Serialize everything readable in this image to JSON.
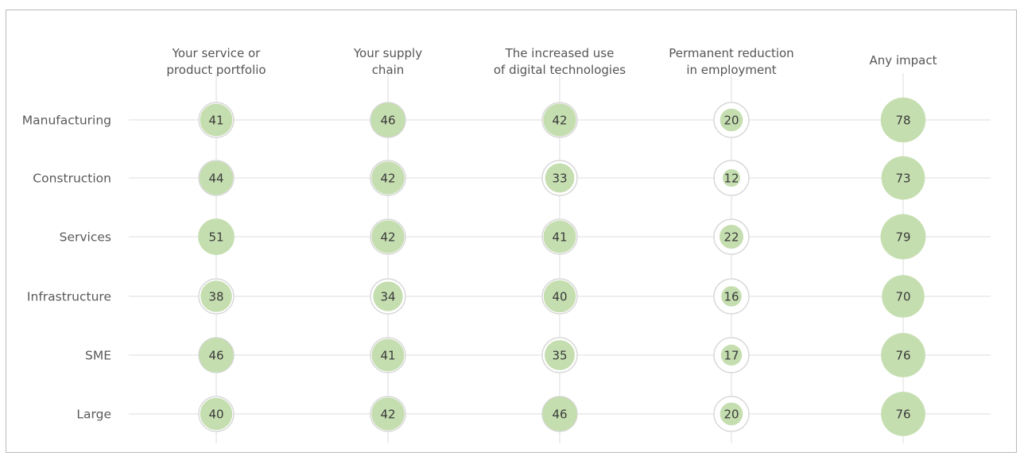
{
  "colors": {
    "bubble_fill": "#c5deb0",
    "ring": "#d4d4d4",
    "ring_bg": "#ffffff",
    "grid": "#dddddd",
    "text": "#595959"
  },
  "chart_data": {
    "type": "bubble-matrix",
    "columns": [
      [
        "Your service or",
        "product portfolio"
      ],
      [
        "Your supply",
        "chain"
      ],
      [
        "The increased use",
        "of digital technologies"
      ],
      [
        "Permanent reduction",
        "in employment"
      ],
      [
        "Any impact"
      ]
    ],
    "rows": [
      "Manufacturing",
      "Construction",
      "Services",
      "Infrastructure",
      "SME",
      "Large"
    ],
    "values": [
      [
        41,
        46,
        42,
        20,
        78
      ],
      [
        44,
        42,
        33,
        12,
        73
      ],
      [
        51,
        42,
        41,
        22,
        79
      ],
      [
        38,
        34,
        40,
        16,
        70
      ],
      [
        46,
        41,
        35,
        17,
        76
      ],
      [
        40,
        42,
        46,
        20,
        76
      ]
    ],
    "value_max": 100
  }
}
